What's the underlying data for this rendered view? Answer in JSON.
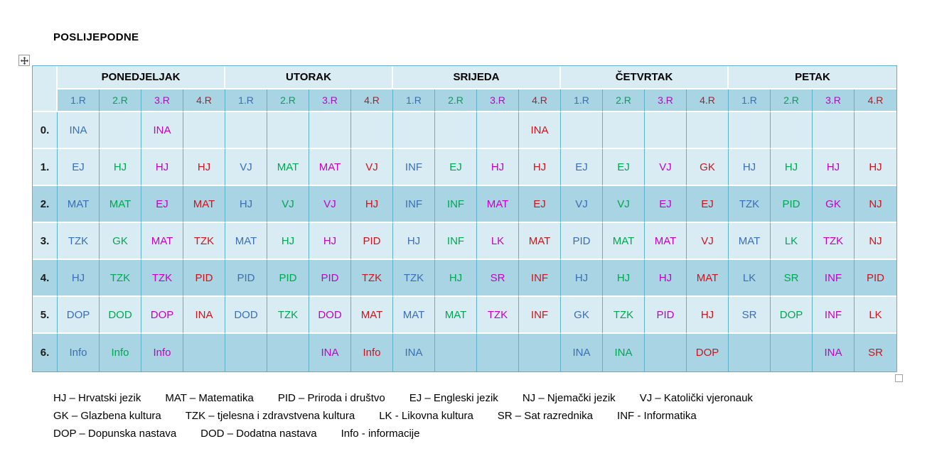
{
  "title": "POSLIJEPODNE",
  "table": {
    "days": [
      {
        "label": "PONEDJELJAK"
      },
      {
        "label": "UTORAK"
      },
      {
        "label": "SRIJEDA"
      },
      {
        "label": "ČETVRTAK"
      },
      {
        "label": "PETAK"
      }
    ],
    "class_headers": [
      {
        "label": "1.R",
        "color": "#3A6EB5"
      },
      {
        "label": "2.R",
        "color": "#00A651"
      },
      {
        "label": "3.R",
        "color": "#C400C4"
      },
      {
        "label": "4.R",
        "color": "#C9151E"
      }
    ],
    "row_labels": [
      "0.",
      "1.",
      "2.",
      "3.",
      "4.",
      "5.",
      "6."
    ],
    "cells": [
      [
        "INA",
        "",
        "INA",
        "",
        "",
        "",
        "",
        "",
        "",
        "",
        "",
        "INA",
        "",
        "",
        "",
        "",
        "",
        "",
        "",
        ""
      ],
      [
        "EJ",
        "HJ",
        "HJ",
        "HJ",
        "VJ",
        "MAT",
        "MAT",
        "VJ",
        "INF",
        "EJ",
        "HJ",
        "HJ",
        "EJ",
        "EJ",
        "VJ",
        "GK",
        "HJ",
        "HJ",
        "HJ",
        "HJ"
      ],
      [
        "MAT",
        "MAT",
        "EJ",
        "MAT",
        "HJ",
        "VJ",
        "VJ",
        "HJ",
        "INF",
        "INF",
        "MAT",
        "EJ",
        "VJ",
        "VJ",
        "EJ",
        "EJ",
        "TZK",
        "PID",
        "GK",
        "NJ"
      ],
      [
        "TZK",
        "GK",
        "MAT",
        "TZK",
        "MAT",
        "HJ",
        "HJ",
        "PID",
        "HJ",
        "INF",
        "LK",
        "MAT",
        "PID",
        "MAT",
        "MAT",
        "VJ",
        "MAT",
        "LK",
        "TZK",
        "NJ"
      ],
      [
        "HJ",
        "TZK",
        "TZK",
        "PID",
        "PID",
        "PID",
        "PID",
        "TZK",
        "TZK",
        "HJ",
        "SR",
        "INF",
        "HJ",
        "HJ",
        "HJ",
        "MAT",
        "LK",
        "SR",
        "INF",
        "PID"
      ],
      [
        "DOP",
        "DOD",
        "DOP",
        "INA",
        "DOD",
        "TZK",
        "DOD",
        "MAT",
        "MAT",
        "MAT",
        "TZK",
        "INF",
        "GK",
        "TZK",
        "PID",
        "HJ",
        "SR",
        "DOP",
        "INF",
        "LK"
      ],
      [
        "Info",
        "Info",
        "Info",
        "",
        "",
        "",
        "INA",
        "Info",
        "INA",
        "",
        "",
        "",
        "INA",
        "INA",
        "",
        "DOP",
        "",
        "",
        "INA",
        "SR"
      ]
    ]
  },
  "legend": {
    "lines": [
      [
        "HJ – Hrvatski jezik",
        "MAT – Matematika",
        "PID – Priroda i društvo",
        "EJ – Engleski jezik",
        "NJ – Njemački jezik",
        "VJ – Katolički vjeronauk"
      ],
      [
        "GK – Glazbena kultura",
        "TZK – tjelesna i zdravstvena kultura",
        "LK - Likovna kultura",
        "SR – Sat razrednika",
        "INF - Informatika"
      ],
      [
        "DOP – Dopunska nastava",
        "DOD – Dodatna nastava",
        "Info - informacije"
      ]
    ]
  },
  "colors": {
    "class_1": "#3A6EB5",
    "class_2": "#00A651",
    "class_3": "#C400C4",
    "class_4": "#C9151E",
    "row_light": "#D9ECF3",
    "row_dark": "#A9D4E3",
    "grid_line": "#5FAFC9",
    "row_separator": "#FFFFFF",
    "header_text": "#000000"
  },
  "icons": {
    "table_move_handle": "four-direction-move-arrows",
    "table_resize_handle": "empty-square"
  }
}
